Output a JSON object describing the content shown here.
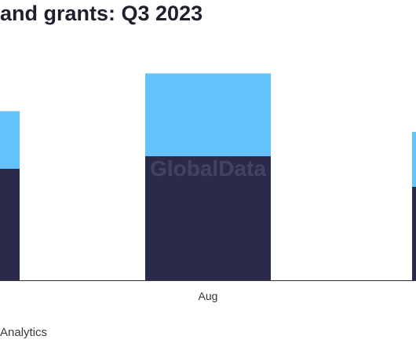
{
  "title": "and grants: Q3 2023",
  "source": "Analytics",
  "watermark": "GlobalData",
  "colors": {
    "bottom": "#2a2a4a",
    "top": "#64c3fa",
    "axis": "#333333"
  },
  "chart_data": {
    "type": "bar",
    "stacked": true,
    "categories": [
      "",
      "Aug",
      ""
    ],
    "series": [
      {
        "values": [
          124,
          138,
          104
        ]
      },
      {
        "values": [
          64,
          92,
          61
        ]
      }
    ],
    "ylim": [
      0,
      240
    ],
    "xlabel": "",
    "ylabel": "",
    "grid": false,
    "legend": "none"
  }
}
